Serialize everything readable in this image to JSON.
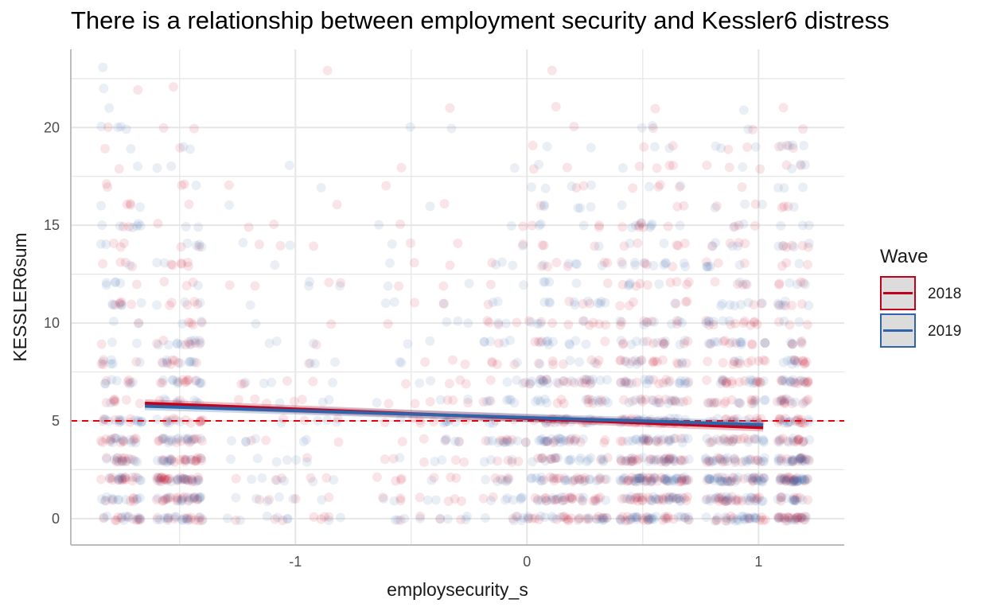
{
  "chart_data": {
    "type": "scatter",
    "title": "There is a relationship between employment security and Kessler6 distress",
    "xlabel": "employsecurity_s",
    "ylabel": "KESSLER6sum",
    "xlim": [
      -1.97,
      1.37
    ],
    "ylim": [
      -1.35,
      24.0
    ],
    "x_ticks": [
      -1,
      0,
      1
    ],
    "y_ticks": [
      0,
      5,
      10,
      15,
      20
    ],
    "grid": true,
    "reference_line": {
      "y": 5,
      "color": "#e8000b",
      "style": "dashed"
    },
    "legend": {
      "title": "Wave",
      "position": "right"
    },
    "series": [
      {
        "name": "2018",
        "color": "#c2001b",
        "marker_alpha": 0.1,
        "fit": {
          "x": [
            -1.65,
            1.02
          ],
          "y": [
            5.9,
            4.65
          ]
        }
      },
      {
        "name": "2019",
        "color": "#2f64a8",
        "marker_alpha": 0.1,
        "fit": {
          "x": [
            -1.65,
            1.02
          ],
          "y": [
            5.75,
            4.8
          ]
        }
      }
    ],
    "scatter_note": "Jittered scatter of roughly 2000 points per wave on integer Kessler6 sums 0–23, concentrated at employsecurity_s clusters near -1.7, -1.5, and 0 to 1.2."
  }
}
